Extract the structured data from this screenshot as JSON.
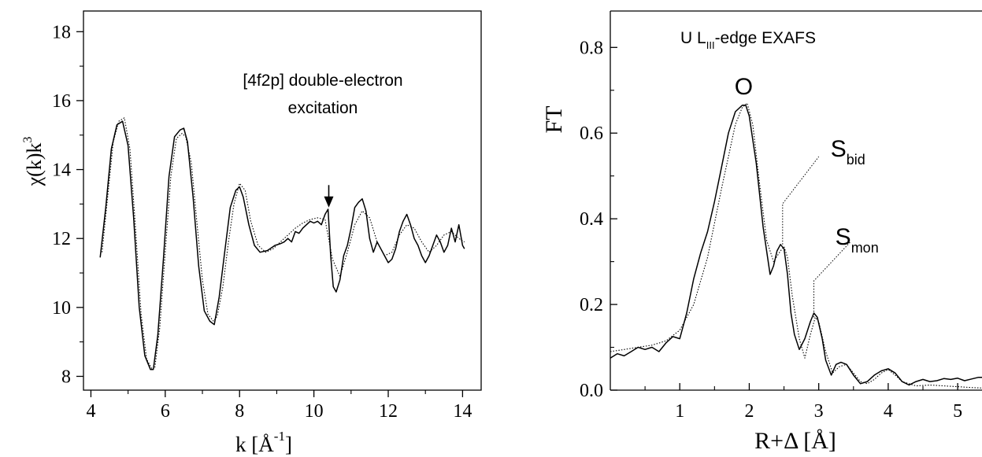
{
  "chart_data": [
    {
      "type": "line",
      "xlabel": "k [Å-1]",
      "xlabel_parts": {
        "main": "k [Å",
        "sup": "-1",
        "close": "]"
      },
      "ylabel": "χ(k)k3",
      "ylabel_parts": {
        "main": "χ(k)k",
        "sup": "3"
      },
      "xlim": [
        3.8,
        14.5
      ],
      "ylim": [
        7.6,
        18.6
      ],
      "xticks": [
        4,
        6,
        8,
        10,
        12,
        14
      ],
      "yticks": [
        8,
        10,
        12,
        14,
        16,
        18
      ],
      "annotation": {
        "line1": "[4f2p] double-electron",
        "line2": "excitation",
        "arrow_x": 10.4,
        "arrow_y_from": 13.55,
        "arrow_y_to": 12.9
      },
      "series": [
        {
          "style": "solid",
          "x": [
            4.25,
            4.4,
            4.55,
            4.7,
            4.85,
            5.0,
            5.15,
            5.3,
            5.45,
            5.6,
            5.68,
            5.8,
            5.95,
            6.1,
            6.25,
            6.4,
            6.5,
            6.6,
            6.75,
            6.9,
            7.05,
            7.2,
            7.32,
            7.45,
            7.6,
            7.75,
            7.9,
            8.0,
            8.1,
            8.25,
            8.4,
            8.55,
            8.75,
            8.95,
            9.1,
            9.2,
            9.3,
            9.4,
            9.5,
            9.6,
            9.7,
            9.8,
            9.9,
            10.0,
            10.1,
            10.2,
            10.3,
            10.38,
            10.45,
            10.52,
            10.6,
            10.7,
            10.8,
            10.9,
            11.0,
            11.1,
            11.2,
            11.3,
            11.4,
            11.5,
            11.6,
            11.7,
            11.8,
            11.9,
            12.0,
            12.1,
            12.2,
            12.3,
            12.4,
            12.5,
            12.6,
            12.7,
            12.8,
            12.9,
            13.0,
            13.1,
            13.2,
            13.3,
            13.4,
            13.5,
            13.6,
            13.7,
            13.8,
            13.9,
            14.0,
            14.05
          ],
          "y": [
            11.45,
            12.9,
            14.6,
            15.3,
            15.4,
            14.7,
            12.6,
            10.0,
            8.6,
            8.2,
            8.2,
            9.2,
            11.4,
            13.8,
            14.95,
            15.15,
            15.2,
            14.8,
            13.2,
            11.2,
            9.9,
            9.6,
            9.5,
            10.3,
            11.6,
            12.9,
            13.4,
            13.5,
            13.2,
            12.4,
            11.8,
            11.6,
            11.65,
            11.8,
            11.85,
            11.9,
            12.0,
            11.9,
            12.2,
            12.15,
            12.3,
            12.4,
            12.5,
            12.45,
            12.5,
            12.4,
            12.7,
            12.85,
            11.5,
            10.6,
            10.45,
            10.8,
            11.5,
            11.8,
            12.3,
            12.9,
            13.05,
            13.15,
            12.8,
            12.0,
            11.6,
            11.9,
            11.7,
            11.5,
            11.3,
            11.4,
            11.7,
            12.2,
            12.5,
            12.7,
            12.4,
            12.0,
            11.8,
            11.5,
            11.3,
            11.5,
            11.8,
            12.1,
            11.9,
            11.6,
            11.8,
            12.3,
            11.9,
            12.4,
            11.8,
            11.7
          ]
        },
        {
          "style": "dotted",
          "x": [
            4.3,
            4.45,
            4.6,
            4.75,
            4.9,
            5.05,
            5.2,
            5.35,
            5.5,
            5.65,
            5.72,
            5.85,
            6.0,
            6.15,
            6.3,
            6.45,
            6.55,
            6.7,
            6.85,
            7.0,
            7.15,
            7.3,
            7.4,
            7.55,
            7.7,
            7.85,
            8.0,
            8.15,
            8.3,
            8.5,
            8.7,
            8.9,
            9.1,
            9.3,
            9.5,
            9.7,
            9.9,
            10.1,
            10.3,
            10.5,
            10.7,
            10.9,
            11.1,
            11.3,
            11.5,
            11.7,
            11.9,
            12.1,
            12.3,
            12.5,
            12.7,
            12.9,
            13.1,
            13.3,
            13.5,
            13.7,
            13.9,
            14.05
          ],
          "y": [
            11.6,
            13.2,
            14.8,
            15.4,
            15.5,
            14.6,
            12.3,
            9.8,
            8.5,
            8.2,
            8.25,
            9.4,
            11.6,
            13.8,
            14.9,
            15.05,
            14.95,
            14.2,
            12.5,
            10.8,
            9.8,
            9.6,
            9.75,
            10.6,
            11.9,
            13.0,
            13.6,
            13.4,
            12.5,
            11.8,
            11.6,
            11.7,
            11.9,
            12.1,
            12.3,
            12.45,
            12.55,
            12.6,
            12.55,
            11.4,
            10.9,
            11.6,
            12.4,
            12.8,
            12.6,
            11.9,
            11.5,
            11.6,
            12.1,
            12.4,
            12.3,
            11.9,
            11.6,
            11.8,
            12.1,
            12.2,
            12.0,
            11.9
          ]
        }
      ]
    },
    {
      "type": "line",
      "xlabel": "R+Δ [Å]",
      "ylabel": "FT",
      "title_parts": {
        "main": "U L",
        "sub": "III",
        "rest": "-edge EXAFS"
      },
      "xlim": [
        0.0,
        5.35
      ],
      "ylim": [
        0.0,
        0.885
      ],
      "xticks": [
        1,
        2,
        3,
        4,
        5
      ],
      "yticks": [
        0.0,
        0.2,
        0.4,
        0.6,
        0.8
      ],
      "ytick_labels": [
        "0.0",
        "0.2",
        "0.4",
        "0.6",
        "0.8"
      ],
      "annotations": [
        {
          "main": "O",
          "sub": "",
          "x": 1.92,
          "y": 0.69
        },
        {
          "main": "S",
          "sub": "bid",
          "x": 3.42,
          "y": 0.545,
          "leader": [
            [
              2.48,
              0.34
            ],
            [
              2.48,
              0.435
            ],
            [
              3.0,
              0.545
            ]
          ]
        },
        {
          "main": "S",
          "sub": "mon",
          "x": 3.55,
          "y": 0.34,
          "leader": [
            [
              2.93,
              0.17
            ],
            [
              2.93,
              0.255
            ],
            [
              3.45,
              0.345
            ]
          ]
        }
      ],
      "series": [
        {
          "style": "solid",
          "x": [
            0.0,
            0.1,
            0.2,
            0.3,
            0.4,
            0.5,
            0.6,
            0.7,
            0.8,
            0.9,
            1.0,
            1.1,
            1.2,
            1.3,
            1.4,
            1.5,
            1.6,
            1.7,
            1.8,
            1.9,
            1.95,
            2.0,
            2.1,
            2.2,
            2.3,
            2.35,
            2.4,
            2.45,
            2.5,
            2.55,
            2.6,
            2.65,
            2.72,
            2.8,
            2.88,
            2.93,
            2.98,
            3.05,
            3.1,
            3.18,
            3.25,
            3.32,
            3.4,
            3.5,
            3.6,
            3.7,
            3.8,
            3.9,
            4.0,
            4.1,
            4.2,
            4.3,
            4.4,
            4.5,
            4.6,
            4.7,
            4.8,
            4.9,
            5.0,
            5.1,
            5.2,
            5.3,
            5.35
          ],
          "y": [
            0.075,
            0.085,
            0.08,
            0.09,
            0.1,
            0.095,
            0.1,
            0.09,
            0.11,
            0.125,
            0.12,
            0.18,
            0.26,
            0.32,
            0.37,
            0.44,
            0.52,
            0.6,
            0.65,
            0.665,
            0.665,
            0.64,
            0.53,
            0.38,
            0.27,
            0.29,
            0.325,
            0.34,
            0.33,
            0.27,
            0.18,
            0.13,
            0.095,
            0.12,
            0.16,
            0.18,
            0.17,
            0.12,
            0.07,
            0.035,
            0.06,
            0.065,
            0.06,
            0.035,
            0.015,
            0.02,
            0.035,
            0.045,
            0.05,
            0.04,
            0.02,
            0.012,
            0.02,
            0.025,
            0.02,
            0.022,
            0.027,
            0.025,
            0.028,
            0.022,
            0.026,
            0.03,
            0.03
          ]
        },
        {
          "style": "dotted",
          "x": [
            0.0,
            0.2,
            0.4,
            0.6,
            0.8,
            1.0,
            1.2,
            1.4,
            1.6,
            1.8,
            1.9,
            1.97,
            2.05,
            2.15,
            2.25,
            2.35,
            2.45,
            2.5,
            2.55,
            2.62,
            2.72,
            2.8,
            2.88,
            2.95,
            3.0,
            3.1,
            3.2,
            3.3,
            3.4,
            3.5,
            3.6,
            3.7,
            3.8,
            3.9,
            4.0,
            4.1,
            4.2,
            4.4,
            4.6,
            4.8,
            5.0,
            5.2,
            5.35
          ],
          "y": [
            0.09,
            0.095,
            0.1,
            0.105,
            0.115,
            0.14,
            0.2,
            0.31,
            0.47,
            0.62,
            0.66,
            0.67,
            0.62,
            0.48,
            0.35,
            0.3,
            0.325,
            0.335,
            0.31,
            0.22,
            0.12,
            0.075,
            0.13,
            0.17,
            0.16,
            0.09,
            0.04,
            0.055,
            0.06,
            0.04,
            0.02,
            0.015,
            0.025,
            0.04,
            0.048,
            0.035,
            0.02,
            0.01,
            0.012,
            0.01,
            0.008,
            0.006,
            0.005
          ]
        }
      ]
    }
  ]
}
